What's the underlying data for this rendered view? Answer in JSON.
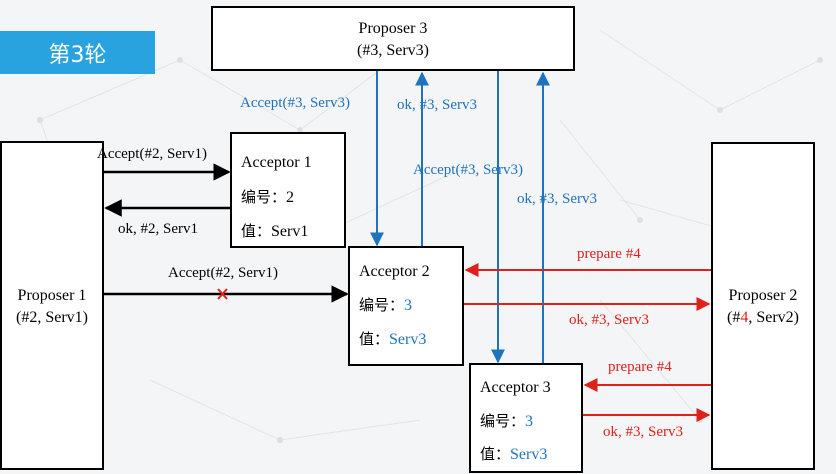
{
  "round_badge": "第3轮",
  "colors": {
    "blue": "#1e73be",
    "red": "#e0201b",
    "badge": "#29a3e0"
  },
  "proposer3": {
    "name": "Proposer 3",
    "proposal": "(#3, Serv3)"
  },
  "proposer1": {
    "name": "Proposer 1",
    "proposal": "(#2, Serv1)"
  },
  "proposer2": {
    "name": "Proposer 2",
    "proposal_prefix": "(#",
    "proposal_num": "4",
    "proposal_suffix": ", Serv2)"
  },
  "acceptor1": {
    "name": "Acceptor 1",
    "number_label": "编号：",
    "number_value": "2",
    "value_label": "值：",
    "value": "Serv1"
  },
  "acceptor2": {
    "name": "Acceptor 2",
    "number_label": "编号：",
    "number_value": "3",
    "value_label": "值：",
    "value": "Serv3"
  },
  "acceptor3": {
    "name": "Acceptor 3",
    "number_label": "编号：",
    "number_value": "3",
    "value_label": "值：",
    "value": "Serv3"
  },
  "messages": {
    "p1_accept_a1": "Accept(#2, Serv1)",
    "a1_ok_p1": "ok, #2, Serv1",
    "p1_accept_a2": "Accept(#2, Serv1)",
    "p3_accept_a2": "Accept(#3, Serv3)",
    "a2_ok_p3": "ok, #3, Serv3",
    "p3_accept_a3": "Accept(#3, Serv3)",
    "a3_ok_p3": "ok, #3, Serv3",
    "p2_prepare_a2": "prepare #4",
    "a2_ok_p2": "ok, #3, Serv3",
    "p2_prepare_a3": "prepare #4",
    "a3_ok_p2": "ok, #3, Serv3"
  }
}
